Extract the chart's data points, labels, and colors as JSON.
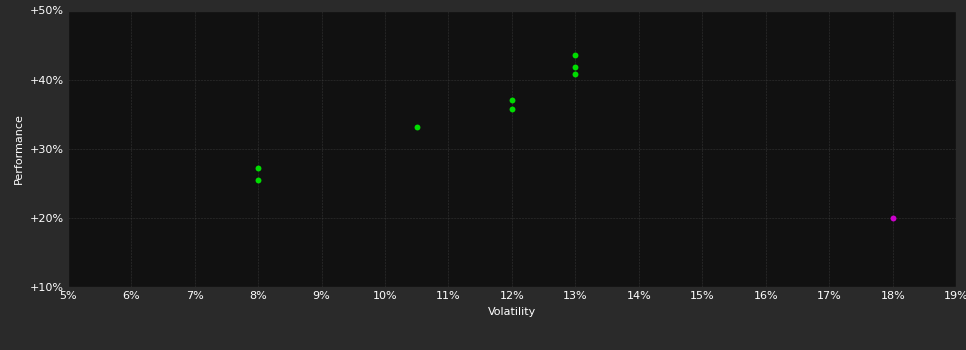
{
  "xlabel": "Volatility",
  "ylabel": "Performance",
  "outer_background_color": "#2a2a2a",
  "plot_background_color": "#111111",
  "grid_color": "#444444",
  "text_color": "#ffffff",
  "xmin": 0.05,
  "xmax": 0.19,
  "ymin": 0.1,
  "ymax": 0.5,
  "xticks": [
    0.05,
    0.06,
    0.07,
    0.08,
    0.09,
    0.1,
    0.11,
    0.12,
    0.13,
    0.14,
    0.15,
    0.16,
    0.17,
    0.18,
    0.19
  ],
  "yticks": [
    0.1,
    0.2,
    0.3,
    0.4,
    0.5
  ],
  "ytick_labels": [
    "+10%",
    "+20%",
    "+30%",
    "+40%",
    "+50%"
  ],
  "xtick_labels": [
    "5%",
    "6%",
    "7%",
    "8%",
    "9%",
    "10%",
    "11%",
    "12%",
    "13%",
    "14%",
    "15%",
    "16%",
    "17%",
    "18%",
    "19%"
  ],
  "green_points": [
    [
      0.08,
      0.272
    ],
    [
      0.08,
      0.255
    ],
    [
      0.105,
      0.332
    ],
    [
      0.12,
      0.37
    ],
    [
      0.12,
      0.358
    ],
    [
      0.13,
      0.435
    ],
    [
      0.13,
      0.418
    ],
    [
      0.13,
      0.408
    ]
  ],
  "magenta_points": [
    [
      0.18,
      0.2
    ]
  ],
  "green_color": "#00dd00",
  "magenta_color": "#cc00cc",
  "marker_size": 18,
  "font_size_axis_label": 8,
  "font_size_tick": 8
}
